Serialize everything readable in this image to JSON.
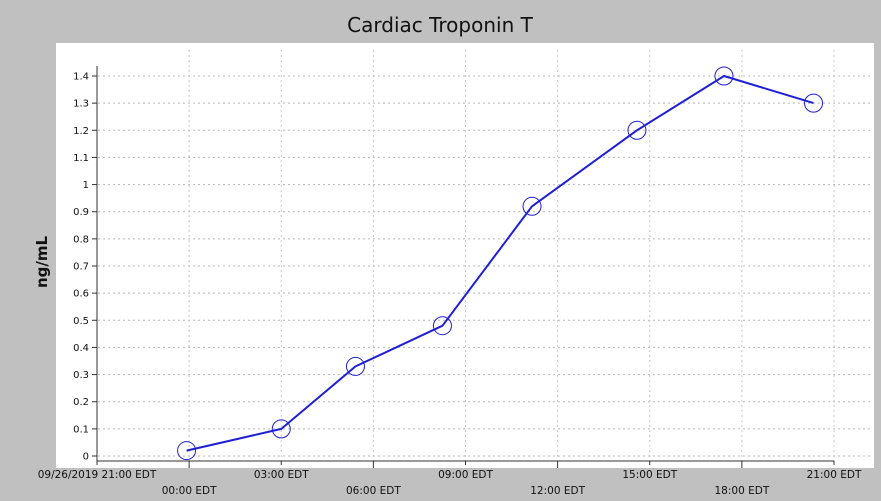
{
  "chart_data": {
    "type": "line",
    "title": "Cardiac Troponin T",
    "xlabel": "",
    "ylabel": "ng/mL",
    "ylim": [
      0,
      1.45
    ],
    "y_ticks": [
      0,
      0.1,
      0.2,
      0.3,
      0.4,
      0.5,
      0.6,
      0.7,
      0.8,
      0.9,
      1,
      1.1,
      1.2,
      1.3,
      1.4
    ],
    "y_tick_labels": [
      "0",
      "0.1",
      "0.2",
      "0.3",
      "0.4",
      "0.5",
      "0.6",
      "0.7",
      "0.8",
      "0.9",
      "1",
      "1.1",
      "1.2",
      "1.3",
      "1.4"
    ],
    "x_range": [
      "2019-09-26T21:00",
      "2019-09-27T21:00"
    ],
    "x_ticks": [
      {
        "time": "2019-09-26T21:00",
        "label": "09/26/2019 21:00 EDT",
        "row": "upper"
      },
      {
        "time": "2019-09-27T00:00",
        "label": "00:00 EDT",
        "row": "lower"
      },
      {
        "time": "2019-09-27T03:00",
        "label": "03:00 EDT",
        "row": "upper"
      },
      {
        "time": "2019-09-27T06:00",
        "label": "06:00 EDT",
        "row": "lower"
      },
      {
        "time": "2019-09-27T09:00",
        "label": "09:00 EDT",
        "row": "upper"
      },
      {
        "time": "2019-09-27T12:00",
        "label": "12:00 EDT",
        "row": "lower"
      },
      {
        "time": "2019-09-27T15:00",
        "label": "15:00 EDT",
        "row": "upper"
      },
      {
        "time": "2019-09-27T18:00",
        "label": "18:00 EDT",
        "row": "lower"
      },
      {
        "time": "2019-09-27T21:00",
        "label": "21:00 EDT",
        "row": "upper"
      }
    ],
    "grid": true,
    "series": [
      {
        "color": "#1f1fd6",
        "marker": "open-circle",
        "points": [
          {
            "x": "2019-09-26T23:55",
            "y": 0.02
          },
          {
            "x": "2019-09-27T03:00",
            "y": 0.1
          },
          {
            "x": "2019-09-27T05:25",
            "y": 0.33
          },
          {
            "x": "2019-09-27T08:15",
            "y": 0.48
          },
          {
            "x": "2019-09-27T11:10",
            "y": 0.92
          },
          {
            "x": "2019-09-27T14:35",
            "y": 1.2
          },
          {
            "x": "2019-09-27T17:25",
            "y": 1.4
          },
          {
            "x": "2019-09-27T20:20",
            "y": 1.3
          }
        ]
      }
    ]
  }
}
